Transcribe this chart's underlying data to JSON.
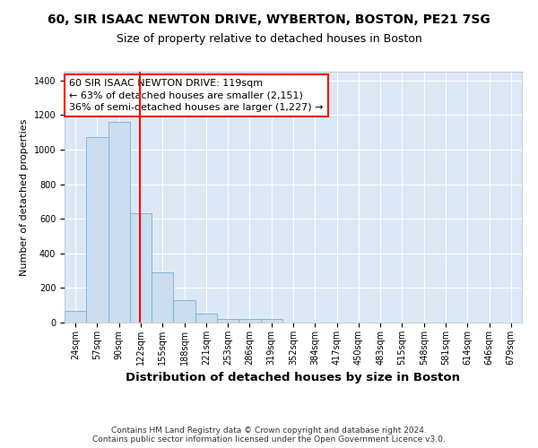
{
  "title_line1": "60, SIR ISAAC NEWTON DRIVE, WYBERTON, BOSTON, PE21 7SG",
  "title_line2": "Size of property relative to detached houses in Boston",
  "xlabel": "Distribution of detached houses by size in Boston",
  "ylabel": "Number of detached properties",
  "bin_labels": [
    "24sqm",
    "57sqm",
    "90sqm",
    "122sqm",
    "155sqm",
    "188sqm",
    "221sqm",
    "253sqm",
    "286sqm",
    "319sqm",
    "352sqm",
    "384sqm",
    "417sqm",
    "450sqm",
    "483sqm",
    "515sqm",
    "548sqm",
    "581sqm",
    "614sqm",
    "646sqm",
    "679sqm"
  ],
  "bar_heights": [
    65,
    1070,
    1160,
    630,
    290,
    130,
    50,
    20,
    20,
    20,
    0,
    0,
    0,
    0,
    0,
    0,
    0,
    0,
    0,
    0,
    0
  ],
  "bar_color": "#ccddf0",
  "bar_edge_color": "#7bafd4",
  "property_line_index": 3,
  "annotation_text": "60 SIR ISAAC NEWTON DRIVE: 119sqm\n← 63% of detached houses are smaller (2,151)\n36% of semi-detached houses are larger (1,227) →",
  "annotation_box_color": "white",
  "annotation_border_color": "red",
  "vline_color": "red",
  "ylim": [
    0,
    1450
  ],
  "yticks": [
    0,
    200,
    400,
    600,
    800,
    1000,
    1200,
    1400
  ],
  "background_color": "#dce8f5",
  "footer_text": "Contains HM Land Registry data © Crown copyright and database right 2024.\nContains public sector information licensed under the Open Government Licence v3.0.",
  "title_fontsize": 10,
  "subtitle_fontsize": 9,
  "ylabel_fontsize": 8,
  "xlabel_fontsize": 9.5,
  "tick_fontsize": 7,
  "annotation_fontsize": 8,
  "footer_fontsize": 6.5
}
